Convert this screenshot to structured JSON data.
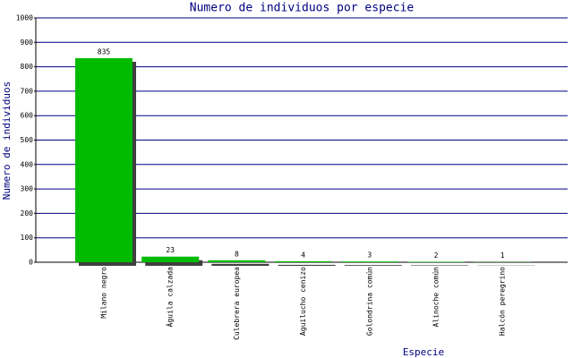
{
  "chart_data": {
    "type": "bar",
    "title": "Numero de individuos por especie",
    "x_label": "Especie",
    "y_label": "Numero de individuos",
    "categories": [
      "Milano negro",
      "Águila calzada",
      "Culebrera europea",
      "Aguilucho cenizo",
      "Golondrina común",
      "Alinoche común",
      "Halcón peregrino"
    ],
    "values": [
      835,
      23,
      8,
      4,
      3,
      2,
      1
    ],
    "color": "#00bb00",
    "ylim": [
      0,
      1000
    ],
    "yticks": [
      0,
      100,
      200,
      300,
      400,
      500,
      600,
      700,
      800,
      900,
      1000
    ],
    "grid": true
  }
}
